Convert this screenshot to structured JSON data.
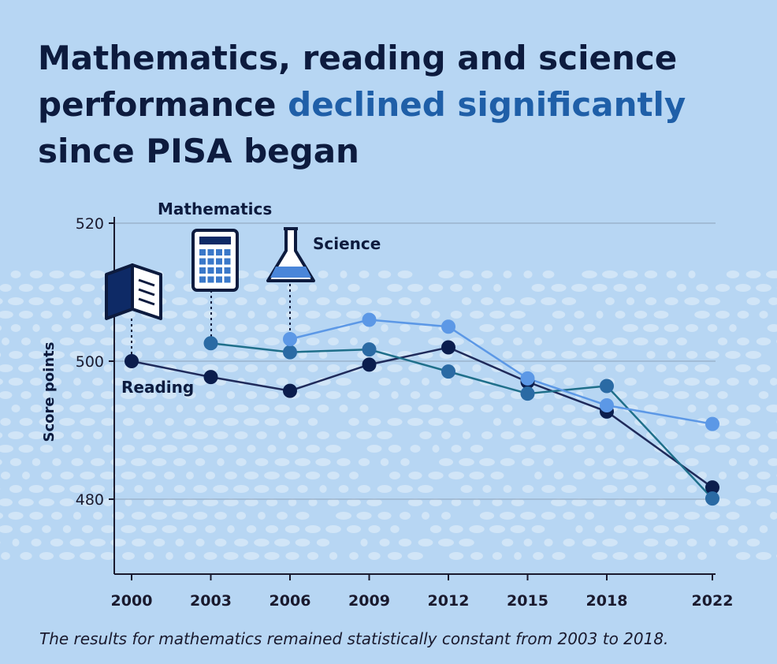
{
  "title": {
    "part1": "Mathematics, reading and science performance ",
    "highlight": "declined significantly",
    "part2": " since PISA began"
  },
  "footnote": "The results for mathematics remained statistically constant from 2003 to 2018.",
  "chart_data": {
    "type": "line",
    "ylabel": "Score points",
    "xlabel": "",
    "x": [
      2000,
      2003,
      2006,
      2009,
      2012,
      2015,
      2018,
      2022
    ],
    "ylim": [
      470,
      521
    ],
    "yticks": [
      480,
      500,
      520
    ],
    "grid": true,
    "series": [
      {
        "name": "Reading",
        "color": "#0b1d4d",
        "line": "#1f2a5a",
        "values": [
          500,
          497.7,
          495.7,
          499.5,
          502,
          497,
          492.7,
          481.7
        ]
      },
      {
        "name": "Mathematics",
        "color": "#2a6aa4",
        "line": "#1f6f8a",
        "values": [
          null,
          502.6,
          501.3,
          501.7,
          498.5,
          495.3,
          496.4,
          480.1
        ]
      },
      {
        "name": "Science",
        "color": "#5c98e6",
        "line": "#5c98e6",
        "values": [
          null,
          null,
          503.2,
          506,
          505,
          497.5,
          493.6,
          490.9
        ]
      }
    ]
  }
}
